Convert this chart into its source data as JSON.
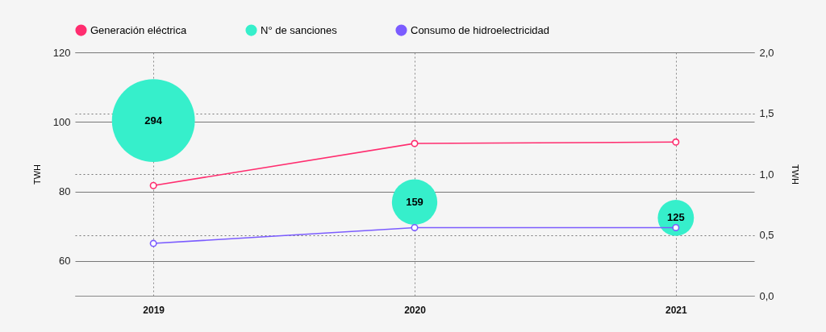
{
  "chart_data": {
    "type": "line",
    "categories": [
      "2019",
      "2020",
      "2021"
    ],
    "ylabel": "TWH",
    "y2label": "TWH",
    "ylim": [
      50,
      120
    ],
    "yticks": [
      60,
      80,
      100,
      120
    ],
    "y2lim": [
      0,
      2
    ],
    "y2ticks": [
      {
        "value": 0,
        "label": "0,0"
      },
      {
        "value": 0.5,
        "label": "0,5"
      },
      {
        "value": 1,
        "label": "1,0"
      },
      {
        "value": 1.5,
        "label": "1,5"
      },
      {
        "value": 2,
        "label": "2,0"
      }
    ],
    "annotations": [
      {
        "text": "294",
        "x": "2019",
        "y": 100.4
      },
      {
        "text": "159",
        "x": "2020",
        "y": 77.0
      },
      {
        "text": "125",
        "x": "2021",
        "y": 72.4
      }
    ],
    "grid": true,
    "legend": "top",
    "marker": "circle",
    "line_style": "solid",
    "series": [
      {
        "name": "Generación eléctrica",
        "type": "line",
        "color": "#ff2d6f",
        "values": [
          81.7,
          93.8,
          94.2
        ]
      },
      {
        "name": "N° de sanciones",
        "type": "bubble",
        "color": "#36efcb",
        "axis": "y2",
        "values": [
          1.44,
          0.77,
          0.64
        ],
        "sizes": [
          1,
          0.3,
          0.19
        ]
      },
      {
        "name": "Consumo de hidroelectricidad",
        "type": "line",
        "color": "#7b5cff",
        "axis": "y2",
        "values": [
          0.43,
          0.56,
          0.56
        ]
      }
    ]
  }
}
